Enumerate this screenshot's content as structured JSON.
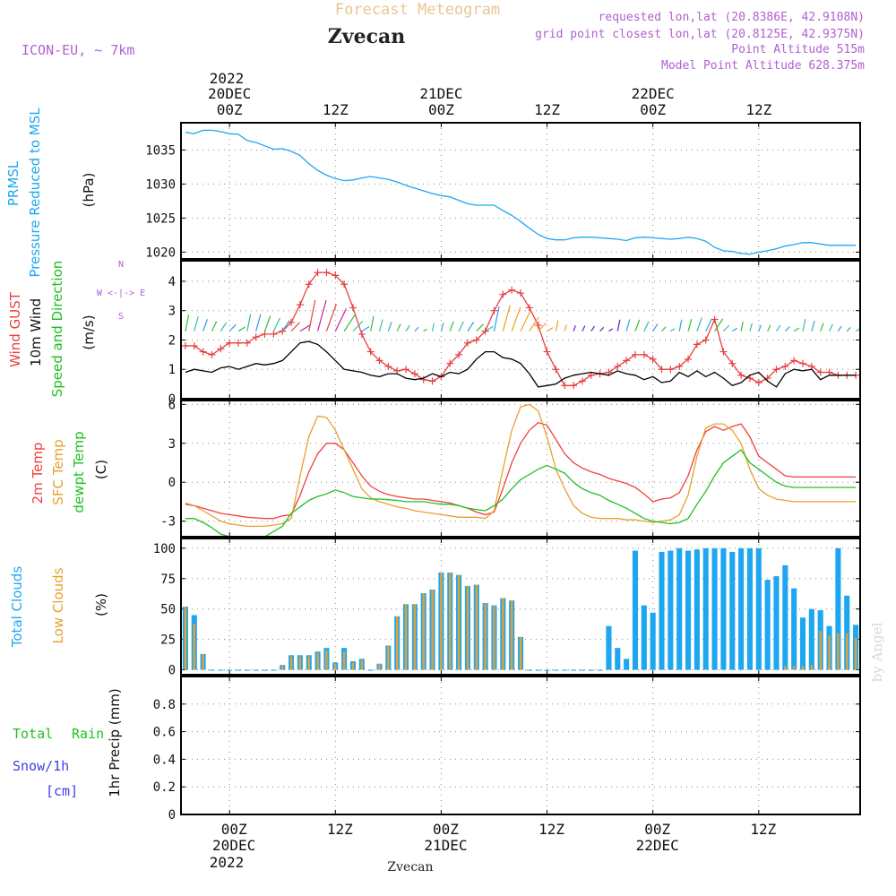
{
  "header": {
    "title": "Forecast Meteogram",
    "station": "Zvecan",
    "model": "ICON-EU, ~ 7km",
    "requested": "requested lon,lat (20.8386E, 42.9108N)",
    "grid_point": "grid point closest lon,lat (20.8125E, 42.9375N)",
    "point_altitude": "Point Altitude 515m",
    "model_altitude": "Model Point Altitude 628.375m",
    "footer_station": "Zvecan",
    "watermark": "by Angel",
    "colors": {
      "title": "#e8c690",
      "info": "#b060d0",
      "pressure": "#1ea7f0",
      "gust": "#e84040",
      "wind": "#000000",
      "dir": "#20c020",
      "temp": "#f04040",
      "sfc": "#e8a030",
      "dewpt": "#20c020",
      "total_cloud": "#1ea7f0",
      "low_cloud": "#e8a030",
      "rain": "#20c020",
      "snow": "#4040e0"
    }
  },
  "time_axis": {
    "top_year": "2022",
    "bottom_year": "2022",
    "ticks": [
      {
        "hour": 0,
        "label": "00Z",
        "date": "20DEC"
      },
      {
        "hour": 12,
        "label": "12Z",
        "date": ""
      },
      {
        "hour": 24,
        "label": "00Z",
        "date": "21DEC"
      },
      {
        "hour": 36,
        "label": "12Z",
        "date": ""
      },
      {
        "hour": 48,
        "label": "00Z",
        "date": "22DEC"
      },
      {
        "hour": 60,
        "label": "12Z",
        "date": ""
      }
    ]
  },
  "panels": {
    "pressure": {
      "labels": [
        "PRMSL",
        "Pressure Reduced to MSL"
      ],
      "unit": "(hPa)"
    },
    "wind": {
      "labels": [
        "Wind GUST",
        "10m Wind",
        "Speed and Direction"
      ],
      "unit": "(m/s)",
      "compass": [
        "N",
        "W <-|-> E",
        "S"
      ]
    },
    "temp": {
      "labels": [
        "2m Temp",
        "SFC Temp",
        "dewpt Temp"
      ],
      "unit": "(C)"
    },
    "clouds": {
      "labels": [
        "Total Clouds",
        "Low Clouds"
      ],
      "unit": "(%)"
    },
    "precip": {
      "labels": [
        "Total",
        "Rain",
        "Snow/1h",
        "[cm]"
      ],
      "unit": "1hr Precip (mm)"
    }
  },
  "chart_data": [
    {
      "type": "line",
      "title": "PRMSL Pressure Reduced to MSL",
      "ylabel": "(hPa)",
      "ylim": [
        1019,
        1039
      ],
      "yticks": [
        1020,
        1025,
        1030,
        1035
      ],
      "x_hours": [
        -5,
        -4,
        -3,
        -2,
        -1,
        0,
        1,
        2,
        3,
        4,
        5,
        6,
        7,
        8,
        9,
        10,
        11,
        12,
        13,
        14,
        15,
        16,
        17,
        18,
        19,
        20,
        21,
        22,
        23,
        24,
        25,
        26,
        27,
        28,
        29,
        30,
        31,
        32,
        33,
        34,
        35,
        36,
        37,
        38,
        39,
        40,
        41,
        42,
        43,
        44,
        45,
        46,
        47,
        48,
        49,
        50,
        51,
        52,
        53,
        54,
        55,
        56,
        57,
        58,
        59,
        60,
        61,
        62,
        63,
        64,
        65,
        66,
        67,
        68,
        69,
        70,
        71
      ],
      "series": [
        {
          "name": "PRMSL",
          "values": [
            1037.6,
            1037.4,
            1037.9,
            1037.9,
            1037.7,
            1037.4,
            1037.3,
            1036.4,
            1036.1,
            1035.6,
            1035.1,
            1035.2,
            1034.8,
            1034.2,
            1033.0,
            1032.0,
            1031.3,
            1030.8,
            1030.5,
            1030.6,
            1030.9,
            1031.1,
            1030.9,
            1030.7,
            1030.3,
            1029.8,
            1029.4,
            1029.0,
            1028.6,
            1028.3,
            1028.1,
            1027.6,
            1027.1,
            1026.9,
            1026.9,
            1026.9,
            1026.1,
            1025.4,
            1024.5,
            1023.5,
            1022.6,
            1022.0,
            1021.8,
            1021.8,
            1022.1,
            1022.2,
            1022.2,
            1022.1,
            1022.0,
            1021.9,
            1021.7,
            1022.1,
            1022.2,
            1022.1,
            1022.0,
            1021.9,
            1022.0,
            1022.2,
            1022.0,
            1021.6,
            1020.7,
            1020.2,
            1020.1,
            1019.8,
            1019.7,
            1020.0,
            1020.2,
            1020.5,
            1020.9,
            1021.1,
            1021.4,
            1021.4,
            1021.2,
            1021.0,
            1021.0,
            1021.0,
            1021.0
          ]
        }
      ]
    },
    {
      "type": "line",
      "title": "Wind GUST 10m Wind Speed and Direction",
      "ylabel": "(m/s)",
      "ylim": [
        0,
        4.7
      ],
      "yticks": [
        0,
        1,
        2,
        3,
        4
      ],
      "x_hours": [
        -5,
        -4,
        -3,
        -2,
        -1,
        0,
        1,
        2,
        3,
        4,
        5,
        6,
        7,
        8,
        9,
        10,
        11,
        12,
        13,
        14,
        15,
        16,
        17,
        18,
        19,
        20,
        21,
        22,
        23,
        24,
        25,
        26,
        27,
        28,
        29,
        30,
        31,
        32,
        33,
        34,
        35,
        36,
        37,
        38,
        39,
        40,
        41,
        42,
        43,
        44,
        45,
        46,
        47,
        48,
        49,
        50,
        51,
        52,
        53,
        54,
        55,
        56,
        57,
        58,
        59,
        60,
        61,
        62,
        63,
        64,
        65,
        66,
        67,
        68,
        69,
        70,
        71
      ],
      "series": [
        {
          "name": "Wind GUST",
          "values": [
            1.8,
            1.8,
            1.6,
            1.5,
            1.7,
            1.9,
            1.9,
            1.9,
            2.1,
            2.2,
            2.2,
            2.3,
            2.6,
            3.2,
            3.9,
            4.3,
            4.3,
            4.2,
            3.9,
            3.1,
            2.2,
            1.6,
            1.3,
            1.1,
            0.95,
            1.0,
            0.85,
            0.65,
            0.6,
            0.75,
            1.2,
            1.5,
            1.9,
            2.0,
            2.3,
            3.0,
            3.55,
            3.7,
            3.6,
            3.1,
            2.5,
            1.6,
            1.0,
            0.45,
            0.45,
            0.6,
            0.8,
            0.85,
            0.9,
            1.1,
            1.3,
            1.5,
            1.5,
            1.35,
            1.0,
            1.0,
            1.1,
            1.35,
            1.85,
            2.0,
            2.7,
            1.6,
            1.2,
            0.8,
            0.7,
            0.55,
            0.7,
            1.0,
            1.1,
            1.3,
            1.2,
            1.1,
            0.9,
            0.9,
            0.8,
            0.8,
            0.8
          ]
        },
        {
          "name": "10m Wind",
          "values": [
            0.9,
            1.0,
            0.95,
            0.9,
            1.05,
            1.1,
            1.0,
            1.1,
            1.2,
            1.15,
            1.2,
            1.3,
            1.6,
            1.9,
            1.95,
            1.85,
            1.6,
            1.3,
            1.0,
            0.95,
            0.9,
            0.8,
            0.75,
            0.85,
            0.85,
            0.7,
            0.65,
            0.7,
            0.85,
            0.75,
            0.9,
            0.85,
            1.0,
            1.35,
            1.6,
            1.6,
            1.4,
            1.35,
            1.2,
            0.85,
            0.4,
            0.45,
            0.5,
            0.7,
            0.8,
            0.85,
            0.9,
            0.85,
            0.8,
            0.95,
            0.85,
            0.8,
            0.65,
            0.75,
            0.55,
            0.6,
            0.9,
            0.75,
            0.95,
            0.75,
            0.9,
            0.7,
            0.45,
            0.55,
            0.8,
            0.9,
            0.6,
            0.4,
            0.85,
            1.0,
            0.95,
            1.0,
            0.65,
            0.8,
            0.8,
            0.8,
            0.8
          ]
        }
      ]
    },
    {
      "type": "line",
      "title": "2m Temp SFC Temp dewpt Temp",
      "ylabel": "(C)",
      "ylim": [
        -4.2,
        6.3
      ],
      "yticks": [
        -3,
        0,
        3,
        6
      ],
      "x_hours": [
        -5,
        -4,
        -3,
        -2,
        -1,
        0,
        1,
        2,
        3,
        4,
        5,
        6,
        7,
        8,
        9,
        10,
        11,
        12,
        13,
        14,
        15,
        16,
        17,
        18,
        19,
        20,
        21,
        22,
        23,
        24,
        25,
        26,
        27,
        28,
        29,
        30,
        31,
        32,
        33,
        34,
        35,
        36,
        37,
        38,
        39,
        40,
        41,
        42,
        43,
        44,
        45,
        46,
        47,
        48,
        49,
        50,
        51,
        52,
        53,
        54,
        55,
        56,
        57,
        58,
        59,
        60,
        61,
        62,
        63,
        64,
        65,
        66,
        67,
        68,
        69,
        70,
        71
      ],
      "series": [
        {
          "name": "2m Temp",
          "values": [
            -1.7,
            -1.8,
            -2.0,
            -2.2,
            -2.4,
            -2.5,
            -2.6,
            -2.7,
            -2.75,
            -2.8,
            -2.8,
            -2.6,
            -2.5,
            -1.0,
            0.8,
            2.2,
            3.0,
            3.0,
            2.5,
            1.5,
            0.5,
            -0.3,
            -0.7,
            -0.95,
            -1.1,
            -1.2,
            -1.3,
            -1.3,
            -1.4,
            -1.5,
            -1.6,
            -1.8,
            -2.0,
            -2.3,
            -2.5,
            -2.3,
            -0.5,
            1.5,
            3.0,
            4.0,
            4.6,
            4.4,
            3.3,
            2.2,
            1.5,
            1.1,
            0.8,
            0.6,
            0.3,
            0.1,
            -0.1,
            -0.4,
            -0.9,
            -1.5,
            -1.3,
            -1.2,
            -0.8,
            0.5,
            2.5,
            3.9,
            4.3,
            4.0,
            4.3,
            4.5,
            3.5,
            2.0,
            1.5,
            1.0,
            0.5,
            0.4,
            0.4,
            0.4,
            0.4,
            0.4,
            0.4,
            0.4,
            0.4
          ]
        },
        {
          "name": "SFC Temp",
          "values": [
            -1.6,
            -1.8,
            -2.2,
            -2.6,
            -3.0,
            -3.2,
            -3.3,
            -3.4,
            -3.4,
            -3.4,
            -3.3,
            -3.2,
            -2.8,
            0.5,
            3.5,
            5.1,
            5.0,
            4.0,
            2.5,
            1.0,
            -0.5,
            -1.2,
            -1.5,
            -1.7,
            -1.9,
            -2.0,
            -2.2,
            -2.3,
            -2.4,
            -2.5,
            -2.6,
            -2.7,
            -2.7,
            -2.7,
            -2.8,
            -2.2,
            1.0,
            4.0,
            5.8,
            6.0,
            5.5,
            3.5,
            1.0,
            -0.5,
            -1.8,
            -2.4,
            -2.7,
            -2.8,
            -2.8,
            -2.8,
            -2.9,
            -2.9,
            -3.0,
            -3.1,
            -3.0,
            -2.9,
            -2.5,
            -1.0,
            2.0,
            4.2,
            4.5,
            4.5,
            4.0,
            3.0,
            1.0,
            -0.5,
            -1.0,
            -1.3,
            -1.4,
            -1.5,
            -1.5,
            -1.5,
            -1.5,
            -1.5,
            -1.5,
            -1.5,
            -1.5
          ]
        },
        {
          "name": "dewpt Temp",
          "values": [
            -2.8,
            -2.8,
            -3.1,
            -3.5,
            -4.0,
            -4.2,
            -4.2,
            -4.25,
            -4.2,
            -4.2,
            -3.8,
            -3.4,
            -2.4,
            -1.9,
            -1.4,
            -1.1,
            -0.9,
            -0.6,
            -0.8,
            -1.1,
            -1.2,
            -1.3,
            -1.3,
            -1.35,
            -1.4,
            -1.5,
            -1.5,
            -1.5,
            -1.6,
            -1.7,
            -1.7,
            -1.8,
            -2.0,
            -2.1,
            -2.2,
            -1.8,
            -1.3,
            -0.5,
            0.2,
            0.6,
            1.0,
            1.3,
            1.0,
            0.7,
            0.0,
            -0.5,
            -0.8,
            -1.0,
            -1.4,
            -1.7,
            -2.0,
            -2.4,
            -2.8,
            -3.0,
            -3.1,
            -3.2,
            -3.1,
            -2.8,
            -1.7,
            -0.7,
            0.5,
            1.5,
            2.0,
            2.5,
            1.5,
            1.0,
            0.5,
            0.0,
            -0.3,
            -0.4,
            -0.4,
            -0.4,
            -0.4,
            -0.4,
            -0.4,
            -0.4,
            -0.4
          ]
        }
      ]
    },
    {
      "type": "bar",
      "title": "Total Clouds Low Clouds",
      "ylabel": "(%)",
      "ylim": [
        -4,
        108
      ],
      "yticks": [
        0,
        25,
        50,
        75,
        100
      ],
      "x_hours": [
        -5,
        -4,
        -3,
        -2,
        -1,
        0,
        1,
        2,
        3,
        4,
        5,
        6,
        7,
        8,
        9,
        10,
        11,
        12,
        13,
        14,
        15,
        16,
        17,
        18,
        19,
        20,
        21,
        22,
        23,
        24,
        25,
        26,
        27,
        28,
        29,
        30,
        31,
        32,
        33,
        34,
        35,
        36,
        37,
        38,
        39,
        40,
        41,
        42,
        43,
        44,
        45,
        46,
        47,
        48,
        49,
        50,
        51,
        52,
        53,
        54,
        55,
        56,
        57,
        58,
        59,
        60,
        61,
        62,
        63,
        64,
        65,
        66,
        67,
        68,
        69,
        70,
        71
      ],
      "series": [
        {
          "name": "Total Clouds",
          "values": [
            52,
            45,
            13,
            0,
            0,
            0,
            0,
            0,
            0,
            0,
            0,
            4,
            12,
            12,
            12,
            15,
            18,
            6,
            18,
            7,
            9,
            0,
            5,
            20,
            44,
            54,
            54,
            63,
            66,
            80,
            80,
            78,
            69,
            70,
            55,
            53,
            59,
            57,
            27,
            0,
            0,
            0,
            0,
            0,
            0,
            0,
            0,
            0,
            36,
            18,
            9,
            98,
            53,
            47,
            97,
            98,
            100,
            98,
            99,
            100,
            100,
            100,
            97,
            100,
            100,
            100,
            74,
            77,
            86,
            67,
            43,
            50,
            49,
            36,
            100,
            61,
            37
          ]
        },
        {
          "name": "Low Clouds",
          "values": [
            52,
            38,
            13,
            0,
            0,
            0,
            0,
            0,
            0,
            0,
            0,
            4,
            11,
            11,
            11,
            14,
            16,
            5,
            15,
            6,
            8,
            0,
            5,
            20,
            44,
            54,
            54,
            63,
            66,
            80,
            80,
            78,
            69,
            70,
            55,
            53,
            59,
            57,
            27,
            0,
            0,
            0,
            0,
            0,
            0,
            0,
            0,
            0,
            0,
            0,
            0,
            0,
            0,
            0,
            0,
            0,
            0,
            0,
            0,
            0,
            0,
            0,
            0,
            0,
            0,
            0,
            0,
            0,
            3,
            3,
            3,
            4,
            32,
            28,
            30,
            30,
            26
          ]
        }
      ]
    },
    {
      "type": "bar",
      "title": "1hr Precip",
      "ylabel": "1hr Precip (mm)",
      "ylim": [
        0,
        1.0
      ],
      "yticks": [
        0,
        0.2,
        0.4,
        0.6,
        0.8
      ],
      "x_hours": [
        -5,
        71
      ],
      "series": [
        {
          "name": "Total Rain",
          "values": [
            0,
            0
          ]
        },
        {
          "name": "Snow/1h",
          "values": [
            0,
            0
          ]
        }
      ]
    }
  ],
  "wind_dir_colors": [
    "#2fbf2f",
    "#30c0a0",
    "#2fa0e0",
    "#e84040",
    "#c020a0",
    "#f0a020",
    "#6020c0",
    "#2060e0"
  ]
}
